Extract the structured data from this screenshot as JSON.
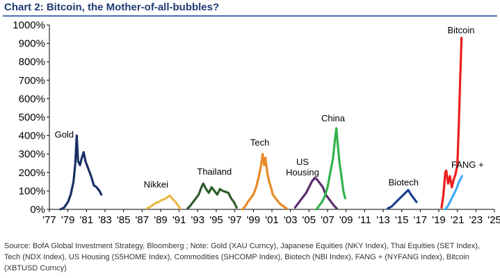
{
  "title": "Chart 2:  Bitcoin, the Mother-of-all-bubbles?",
  "source": "Source:  BofA Global Investment Strategy, Bloomberg ; Note: Gold (XAU Curncy), Japanese Equities (NKY Index), Thai Equities (SET Index), Tech (NDX Index), US Housing (S5HOME Index), Commodities (SHCOMP Index), Biotech (NBI Index), FANG + (NYFANG Index), Bitcoin (XBTUSD Curncy)",
  "chart_data": {
    "type": "line",
    "title": "Bitcoin, the Mother-of-all-bubbles?",
    "xlabel": "",
    "ylabel": "",
    "xlim": [
      1977,
      2025
    ],
    "ylim": [
      0,
      1000
    ],
    "grid": false,
    "x_tick_labels": [
      "'77",
      "'79",
      "'81",
      "'83",
      "'85",
      "'87",
      "'89",
      "'91",
      "'93",
      "'95",
      "'97",
      "'99",
      "'01",
      "'03",
      "'05",
      "'07",
      "'09",
      "'11",
      "'13",
      "'15",
      "'17",
      "'19",
      "'21",
      "'23",
      "'25"
    ],
    "y_tick_labels": [
      "0%",
      "100%",
      "200%",
      "300%",
      "400%",
      "500%",
      "600%",
      "700%",
      "800%",
      "900%",
      "1000%"
    ],
    "series": [
      {
        "name": "Gold",
        "color": "#1a2f66",
        "label_at": [
          1978.6,
          390
        ],
        "points": [
          [
            1978.2,
            0
          ],
          [
            1978.6,
            10
          ],
          [
            1979.0,
            40
          ],
          [
            1979.3,
            80
          ],
          [
            1979.6,
            150
          ],
          [
            1979.8,
            250
          ],
          [
            1979.95,
            400
          ],
          [
            1980.1,
            260
          ],
          [
            1980.3,
            240
          ],
          [
            1980.5,
            280
          ],
          [
            1980.7,
            310
          ],
          [
            1980.9,
            260
          ],
          [
            1981.2,
            220
          ],
          [
            1981.5,
            180
          ],
          [
            1981.8,
            130
          ],
          [
            1982.1,
            120
          ],
          [
            1982.4,
            100
          ],
          [
            1982.6,
            80
          ]
        ]
      },
      {
        "name": "Nikkei",
        "color": "#e8b84a",
        "label_at": [
          1988.5,
          118
        ],
        "points": [
          [
            1987.5,
            5
          ],
          [
            1987.9,
            15
          ],
          [
            1988.2,
            25
          ],
          [
            1988.5,
            35
          ],
          [
            1988.8,
            40
          ],
          [
            1989.1,
            50
          ],
          [
            1989.4,
            55
          ],
          [
            1989.7,
            65
          ],
          [
            1990.0,
            75
          ],
          [
            1990.3,
            55
          ],
          [
            1990.6,
            40
          ],
          [
            1990.9,
            20
          ],
          [
            1991.1,
            5
          ]
        ]
      },
      {
        "name": "Thailand",
        "color": "#2e5c2a",
        "label_at": [
          1994.8,
          188
        ],
        "points": [
          [
            1991.9,
            5
          ],
          [
            1992.2,
            20
          ],
          [
            1992.5,
            40
          ],
          [
            1992.8,
            60
          ],
          [
            1993.1,
            80
          ],
          [
            1993.4,
            120
          ],
          [
            1993.6,
            140
          ],
          [
            1993.9,
            110
          ],
          [
            1994.2,
            90
          ],
          [
            1994.5,
            120
          ],
          [
            1994.8,
            100
          ],
          [
            1995.1,
            80
          ],
          [
            1995.4,
            110
          ],
          [
            1995.7,
            100
          ],
          [
            1996.0,
            95
          ],
          [
            1996.3,
            90
          ],
          [
            1996.6,
            60
          ],
          [
            1996.9,
            40
          ],
          [
            1997.2,
            10
          ]
        ]
      },
      {
        "name": "Tech",
        "color": "#e98a26",
        "label_at": [
          1999.7,
          345
        ],
        "points": [
          [
            1997.8,
            0
          ],
          [
            1998.1,
            15
          ],
          [
            1998.4,
            40
          ],
          [
            1998.7,
            60
          ],
          [
            1999.0,
            80
          ],
          [
            1999.3,
            120
          ],
          [
            1999.6,
            180
          ],
          [
            1999.8,
            230
          ],
          [
            2000.0,
            300
          ],
          [
            2000.15,
            240
          ],
          [
            2000.3,
            280
          ],
          [
            2000.5,
            200
          ],
          [
            2000.7,
            150
          ],
          [
            2000.9,
            120
          ],
          [
            2001.1,
            80
          ],
          [
            2001.4,
            60
          ],
          [
            2001.7,
            40
          ],
          [
            2002.0,
            25
          ],
          [
            2002.3,
            15
          ],
          [
            2002.6,
            5
          ]
        ]
      },
      {
        "name": "US Housing",
        "color": "#5b2d6e",
        "label_at": [
          2004.3,
          240
        ],
        "label_lines": [
          "US",
          "Housing"
        ],
        "points": [
          [
            2003.5,
            10
          ],
          [
            2003.8,
            30
          ],
          [
            2004.1,
            50
          ],
          [
            2004.4,
            70
          ],
          [
            2004.7,
            90
          ],
          [
            2005.0,
            120
          ],
          [
            2005.3,
            150
          ],
          [
            2005.6,
            170
          ],
          [
            2005.9,
            160
          ],
          [
            2006.2,
            140
          ],
          [
            2006.5,
            120
          ],
          [
            2006.8,
            80
          ],
          [
            2007.1,
            60
          ],
          [
            2007.4,
            40
          ],
          [
            2007.7,
            20
          ],
          [
            2008.0,
            5
          ]
        ]
      },
      {
        "name": "China",
        "color": "#32b24a",
        "label_at": [
          2007.6,
          478
        ],
        "points": [
          [
            2005.8,
            0
          ],
          [
            2006.1,
            20
          ],
          [
            2006.4,
            40
          ],
          [
            2006.7,
            70
          ],
          [
            2007.0,
            120
          ],
          [
            2007.3,
            200
          ],
          [
            2007.6,
            280
          ],
          [
            2007.8,
            380
          ],
          [
            2007.95,
            440
          ],
          [
            2008.1,
            350
          ],
          [
            2008.3,
            250
          ],
          [
            2008.5,
            180
          ],
          [
            2008.7,
            100
          ],
          [
            2008.9,
            60
          ]
        ]
      },
      {
        "name": "Biotech",
        "color": "#1a3f8f",
        "label_at": [
          2015.2,
          130
        ],
        "points": [
          [
            2013.5,
            5
          ],
          [
            2013.9,
            15
          ],
          [
            2014.2,
            30
          ],
          [
            2014.5,
            45
          ],
          [
            2014.8,
            60
          ],
          [
            2015.1,
            75
          ],
          [
            2015.4,
            90
          ],
          [
            2015.7,
            105
          ],
          [
            2016.0,
            80
          ],
          [
            2016.3,
            60
          ],
          [
            2016.6,
            40
          ]
        ]
      },
      {
        "name": "FANG +",
        "color": "#3fa9f5",
        "label_at": [
          2022.1,
          225
        ],
        "points": [
          [
            2019.7,
            0
          ],
          [
            2020.0,
            20
          ],
          [
            2020.3,
            50
          ],
          [
            2020.6,
            80
          ],
          [
            2020.9,
            110
          ],
          [
            2021.1,
            140
          ],
          [
            2021.3,
            160
          ],
          [
            2021.5,
            180
          ]
        ]
      },
      {
        "name": "Bitcoin",
        "color": "#ee1c1c",
        "label_at": [
          2021.4,
          955
        ],
        "points": [
          [
            2019.3,
            10
          ],
          [
            2019.5,
            80
          ],
          [
            2019.7,
            200
          ],
          [
            2019.8,
            210
          ],
          [
            2020.0,
            140
          ],
          [
            2020.2,
            180
          ],
          [
            2020.4,
            120
          ],
          [
            2020.6,
            160
          ],
          [
            2020.8,
            190
          ],
          [
            2021.0,
            240
          ],
          [
            2021.15,
            450
          ],
          [
            2021.3,
            700
          ],
          [
            2021.45,
            930
          ]
        ]
      }
    ]
  }
}
